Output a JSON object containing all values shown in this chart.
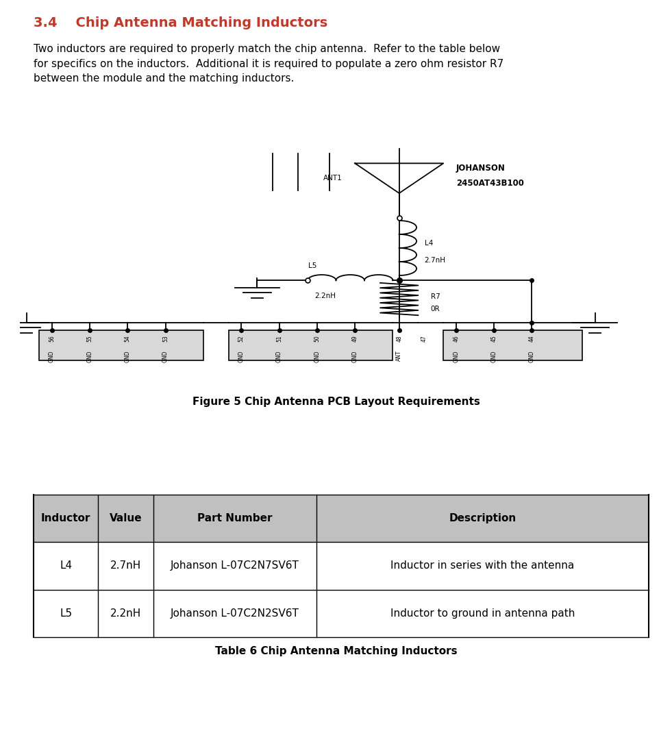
{
  "title_number": "3.4",
  "title_text": "Chip Antenna Matching Inductors",
  "title_color": "#C0392B",
  "title_fontsize": 14,
  "body_text": "Two inductors are required to properly match the chip antenna.  Refer to the table below\nfor specifics on the inductors.  Additional it is required to populate a zero ohm resistor R7\nbetween the module and the matching inductors.",
  "body_fontsize": 11,
  "figure_caption": "Figure 5 Chip Antenna PCB Layout Requirements",
  "figure_caption_fontsize": 11,
  "table_caption": "Table 6 Chip Antenna Matching Inductors",
  "table_caption_fontsize": 11,
  "table_header": [
    "Inductor",
    "Value",
    "Part Number",
    "Description"
  ],
  "table_rows": [
    [
      "L4",
      "2.7nH",
      "Johanson L-07C2N7SV6T",
      "Inductor in series with the antenna"
    ],
    [
      "L5",
      "2.2nH",
      "Johanson L-07C2N2SV6T",
      "Inductor to ground in antenna path"
    ]
  ],
  "header_bg": "#C0C0C0",
  "table_bg": "#FFFFFF",
  "table_border": "#000000",
  "header_fontsize": 11,
  "row_fontsize": 11,
  "background_color": "#FFFFFF"
}
